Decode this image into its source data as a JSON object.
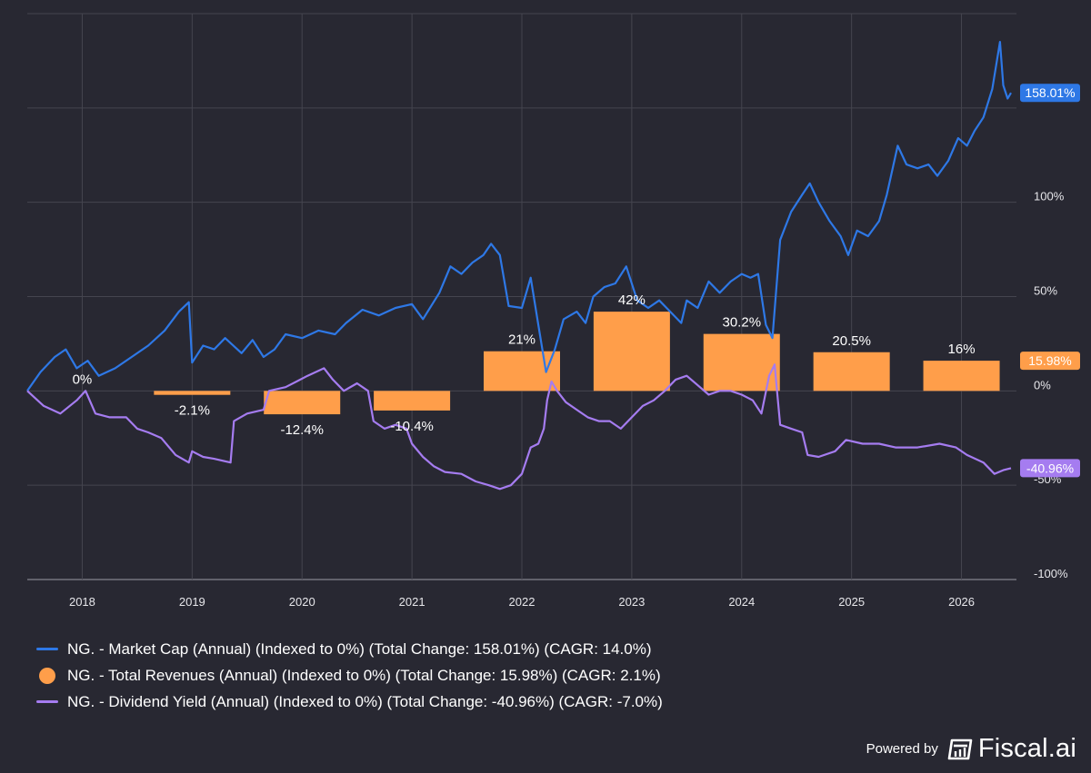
{
  "chart_data": {
    "type": "line",
    "x_range": [
      2017.5,
      2026.5
    ],
    "ylim": [
      -100,
      200
    ],
    "y_ticks": [
      {
        "value": 100,
        "label": "100%"
      },
      {
        "value": 50,
        "label": "50%"
      },
      {
        "value": 0,
        "label": "0%"
      },
      {
        "value": -50,
        "label": "-50%"
      },
      {
        "value": -100,
        "label": "-100%"
      }
    ],
    "x_ticks": [
      2018,
      2019,
      2020,
      2021,
      2022,
      2023,
      2024,
      2025,
      2026
    ],
    "x_tick_labels": [
      "2018",
      "2019",
      "2020",
      "2021",
      "2022",
      "2023",
      "2024",
      "2025",
      "2026"
    ],
    "grid": true,
    "legend_position": "bottom-left",
    "series": [
      {
        "name": "NG. - Market Cap (Annual) (Indexed to 0%) (Total Change: 158.01%) (CAGR: 14.0%)",
        "type": "line",
        "color": "#2e78e6",
        "end_label": "158.01%",
        "points": [
          [
            2017.5,
            0
          ],
          [
            2017.62,
            10
          ],
          [
            2017.75,
            18
          ],
          [
            2017.85,
            22
          ],
          [
            2017.95,
            12
          ],
          [
            2018.05,
            16
          ],
          [
            2018.15,
            8
          ],
          [
            2018.3,
            12
          ],
          [
            2018.45,
            18
          ],
          [
            2018.6,
            24
          ],
          [
            2018.75,
            32
          ],
          [
            2018.88,
            42
          ],
          [
            2018.97,
            47
          ],
          [
            2019.0,
            15
          ],
          [
            2019.1,
            24
          ],
          [
            2019.2,
            22
          ],
          [
            2019.3,
            28
          ],
          [
            2019.45,
            20
          ],
          [
            2019.55,
            27
          ],
          [
            2019.65,
            18
          ],
          [
            2019.75,
            22
          ],
          [
            2019.85,
            30
          ],
          [
            2020.0,
            28
          ],
          [
            2020.15,
            32
          ],
          [
            2020.3,
            30
          ],
          [
            2020.4,
            36
          ],
          [
            2020.55,
            43
          ],
          [
            2020.7,
            40
          ],
          [
            2020.85,
            44
          ],
          [
            2021.0,
            46
          ],
          [
            2021.1,
            38
          ],
          [
            2021.25,
            52
          ],
          [
            2021.35,
            66
          ],
          [
            2021.45,
            62
          ],
          [
            2021.55,
            68
          ],
          [
            2021.65,
            72
          ],
          [
            2021.72,
            78
          ],
          [
            2021.8,
            72
          ],
          [
            2021.88,
            45
          ],
          [
            2022.0,
            44
          ],
          [
            2022.08,
            60
          ],
          [
            2022.15,
            35
          ],
          [
            2022.22,
            10
          ],
          [
            2022.3,
            22
          ],
          [
            2022.38,
            38
          ],
          [
            2022.5,
            42
          ],
          [
            2022.58,
            36
          ],
          [
            2022.65,
            50
          ],
          [
            2022.75,
            55
          ],
          [
            2022.85,
            57
          ],
          [
            2022.95,
            66
          ],
          [
            2023.05,
            48
          ],
          [
            2023.15,
            44
          ],
          [
            2023.25,
            48
          ],
          [
            2023.35,
            42
          ],
          [
            2023.45,
            36
          ],
          [
            2023.5,
            48
          ],
          [
            2023.6,
            44
          ],
          [
            2023.7,
            58
          ],
          [
            2023.8,
            52
          ],
          [
            2023.9,
            58
          ],
          [
            2024.0,
            62
          ],
          [
            2024.08,
            60
          ],
          [
            2024.15,
            62
          ],
          [
            2024.22,
            35
          ],
          [
            2024.28,
            28
          ],
          [
            2024.35,
            80
          ],
          [
            2024.45,
            95
          ],
          [
            2024.55,
            104
          ],
          [
            2024.62,
            110
          ],
          [
            2024.7,
            100
          ],
          [
            2024.8,
            90
          ],
          [
            2024.9,
            82
          ],
          [
            2024.97,
            72
          ],
          [
            2025.05,
            85
          ],
          [
            2025.15,
            82
          ],
          [
            2025.25,
            90
          ],
          [
            2025.32,
            104
          ],
          [
            2025.42,
            130
          ],
          [
            2025.5,
            120
          ],
          [
            2025.6,
            118
          ],
          [
            2025.7,
            120
          ],
          [
            2025.78,
            114
          ],
          [
            2025.88,
            122
          ],
          [
            2025.97,
            134
          ],
          [
            2026.05,
            130
          ],
          [
            2026.12,
            138
          ],
          [
            2026.2,
            145
          ],
          [
            2026.28,
            160
          ],
          [
            2026.35,
            185
          ],
          [
            2026.38,
            162
          ],
          [
            2026.42,
            155
          ],
          [
            2026.45,
            158.01
          ]
        ]
      },
      {
        "name": "NG. - Total Revenues (Annual) (Indexed to 0%) (Total Change: 15.98%) (CAGR: 2.1%)",
        "type": "bar",
        "color": "#ff9e4a",
        "end_label": "15.98%",
        "points": [
          {
            "x": 2018,
            "value": 0,
            "label": "0%"
          },
          {
            "x": 2019,
            "value": -2.1,
            "label": "-2.1%"
          },
          {
            "x": 2020,
            "value": -12.4,
            "label": "-12.4%"
          },
          {
            "x": 2021,
            "value": -10.4,
            "label": "-10.4%"
          },
          {
            "x": 2022,
            "value": 21,
            "label": "21%"
          },
          {
            "x": 2023,
            "value": 42,
            "label": "42%"
          },
          {
            "x": 2024,
            "value": 30.2,
            "label": "30.2%"
          },
          {
            "x": 2025,
            "value": 20.5,
            "label": "20.5%"
          },
          {
            "x": 2026,
            "value": 16,
            "label": "16%"
          }
        ]
      },
      {
        "name": "NG. - Dividend Yield (Annual) (Indexed to 0%) (Total Change: -40.96%) (CAGR: -7.0%)",
        "type": "line",
        "color": "#a57cf0",
        "end_label": "-40.96%",
        "points": [
          [
            2017.5,
            0
          ],
          [
            2017.65,
            -8
          ],
          [
            2017.8,
            -12
          ],
          [
            2017.95,
            -5
          ],
          [
            2018.03,
            0
          ],
          [
            2018.12,
            -12
          ],
          [
            2018.25,
            -14
          ],
          [
            2018.4,
            -14
          ],
          [
            2018.5,
            -20
          ],
          [
            2018.6,
            -22
          ],
          [
            2018.72,
            -25
          ],
          [
            2018.85,
            -34
          ],
          [
            2018.97,
            -38
          ],
          [
            2019.0,
            -32
          ],
          [
            2019.1,
            -35
          ],
          [
            2019.2,
            -36
          ],
          [
            2019.35,
            -38
          ],
          [
            2019.38,
            -16
          ],
          [
            2019.5,
            -12
          ],
          [
            2019.65,
            -10
          ],
          [
            2019.7,
            0
          ],
          [
            2019.85,
            2
          ],
          [
            2019.95,
            5
          ],
          [
            2020.05,
            8
          ],
          [
            2020.2,
            12
          ],
          [
            2020.28,
            6
          ],
          [
            2020.38,
            0
          ],
          [
            2020.5,
            4
          ],
          [
            2020.6,
            0
          ],
          [
            2020.65,
            -16
          ],
          [
            2020.75,
            -20
          ],
          [
            2020.85,
            -18
          ],
          [
            2020.95,
            -20
          ],
          [
            2021.0,
            -28
          ],
          [
            2021.1,
            -35
          ],
          [
            2021.2,
            -40
          ],
          [
            2021.3,
            -43
          ],
          [
            2021.45,
            -44
          ],
          [
            2021.58,
            -48
          ],
          [
            2021.7,
            -50
          ],
          [
            2021.8,
            -52
          ],
          [
            2021.9,
            -50
          ],
          [
            2022.0,
            -44
          ],
          [
            2022.08,
            -30
          ],
          [
            2022.15,
            -28
          ],
          [
            2022.2,
            -20
          ],
          [
            2022.23,
            -5
          ],
          [
            2022.27,
            5
          ],
          [
            2022.32,
            0
          ],
          [
            2022.4,
            -6
          ],
          [
            2022.5,
            -10
          ],
          [
            2022.6,
            -14
          ],
          [
            2022.7,
            -16
          ],
          [
            2022.8,
            -16
          ],
          [
            2022.9,
            -20
          ],
          [
            2023.0,
            -14
          ],
          [
            2023.1,
            -8
          ],
          [
            2023.2,
            -5
          ],
          [
            2023.3,
            0
          ],
          [
            2023.4,
            6
          ],
          [
            2023.5,
            8
          ],
          [
            2023.6,
            3
          ],
          [
            2023.7,
            -2
          ],
          [
            2023.8,
            0
          ],
          [
            2023.9,
            0
          ],
          [
            2024.0,
            -2
          ],
          [
            2024.1,
            -5
          ],
          [
            2024.18,
            -12
          ],
          [
            2024.25,
            8
          ],
          [
            2024.3,
            14
          ],
          [
            2024.35,
            -18
          ],
          [
            2024.45,
            -20
          ],
          [
            2024.55,
            -22
          ],
          [
            2024.6,
            -34
          ],
          [
            2024.7,
            -35
          ],
          [
            2024.85,
            -32
          ],
          [
            2024.95,
            -26
          ],
          [
            2025.1,
            -28
          ],
          [
            2025.25,
            -28
          ],
          [
            2025.4,
            -30
          ],
          [
            2025.6,
            -30
          ],
          [
            2025.8,
            -28
          ],
          [
            2025.95,
            -30
          ],
          [
            2026.05,
            -34
          ],
          [
            2026.2,
            -38
          ],
          [
            2026.3,
            -44
          ],
          [
            2026.38,
            -42
          ],
          [
            2026.45,
            -40.96
          ]
        ]
      }
    ]
  },
  "branding": {
    "powered_by": "Powered by",
    "name": "Fiscal.ai"
  }
}
